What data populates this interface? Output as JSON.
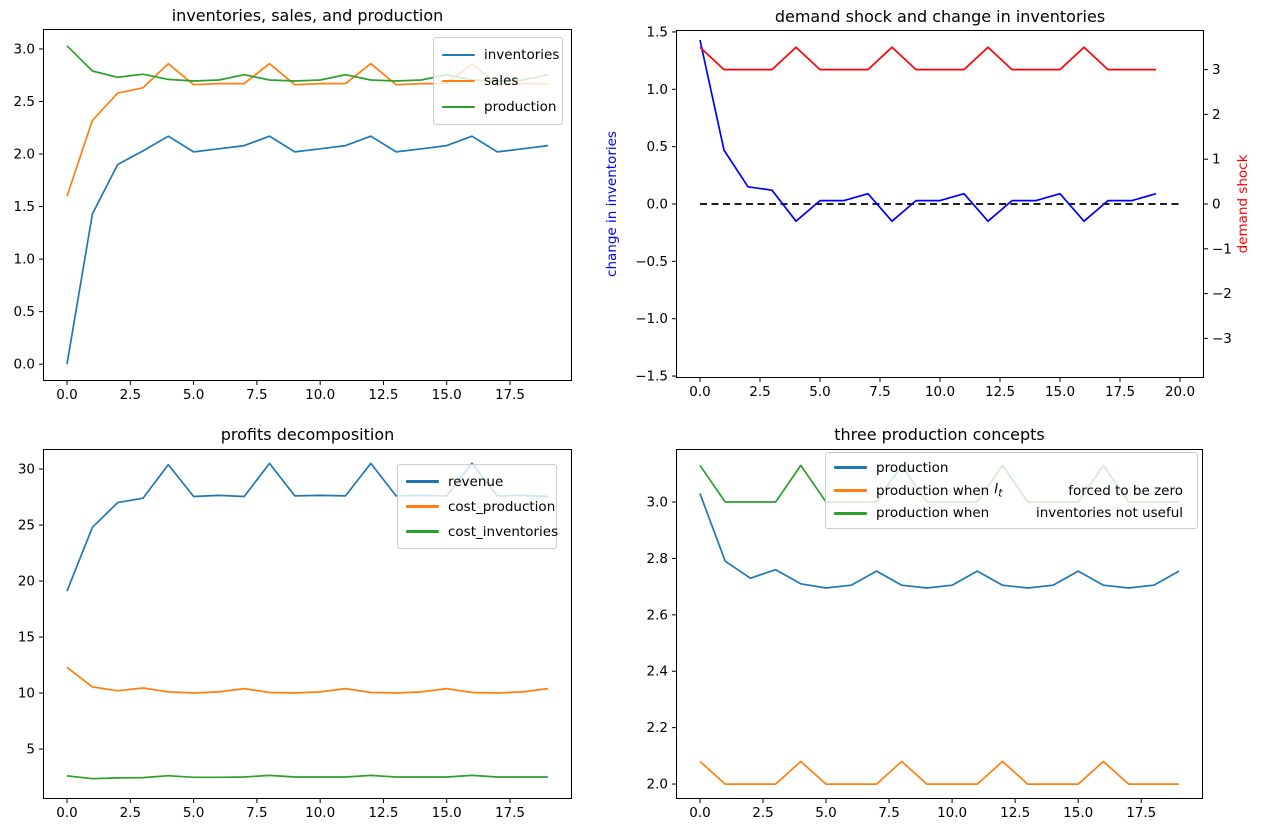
{
  "chart_data": [
    {
      "id": "inventories-sales-production",
      "type": "line",
      "title": "inventories, sales, and production",
      "grid": false,
      "x": [
        0,
        1,
        2,
        3,
        4,
        5,
        6,
        7,
        8,
        9,
        10,
        11,
        12,
        13,
        14,
        15,
        16,
        17,
        18,
        19
      ],
      "xlim": [
        -0.95,
        19.95
      ],
      "ylim": [
        -0.16,
        3.19
      ],
      "xticks": {
        "values": [
          0,
          2.5,
          5,
          7.5,
          10,
          12.5,
          15,
          17.5
        ],
        "labels": [
          "0.0",
          "2.5",
          "5.0",
          "7.5",
          "10.0",
          "12.5",
          "15.0",
          "17.5"
        ]
      },
      "yticks": {
        "values": [
          0,
          0.5,
          1,
          1.5,
          2,
          2.5,
          3
        ],
        "labels": [
          "0.0",
          "0.5",
          "1.0",
          "1.5",
          "2.0",
          "2.5",
          "3.0"
        ]
      },
      "series": [
        {
          "name": "inventories",
          "color": "#1f77b4",
          "values": [
            0.0,
            1.43,
            1.9,
            2.03,
            2.17,
            2.02,
            2.05,
            2.08,
            2.17,
            2.02,
            2.05,
            2.08,
            2.17,
            2.02,
            2.05,
            2.08,
            2.17,
            2.02,
            2.05,
            2.08
          ]
        },
        {
          "name": "sales",
          "color": "#ff7f0e",
          "values": [
            1.6,
            2.32,
            2.58,
            2.63,
            2.86,
            2.66,
            2.67,
            2.67,
            2.86,
            2.66,
            2.67,
            2.67,
            2.86,
            2.66,
            2.67,
            2.67,
            2.86,
            2.66,
            2.67,
            2.67
          ]
        },
        {
          "name": "production",
          "color": "#2ca02c",
          "values": [
            3.03,
            2.79,
            2.73,
            2.76,
            2.71,
            2.695,
            2.705,
            2.755,
            2.705,
            2.695,
            2.705,
            2.755,
            2.705,
            2.695,
            2.705,
            2.755,
            2.705,
            2.695,
            2.705,
            2.755
          ]
        }
      ],
      "legend": {
        "position": "upper right",
        "entries": [
          {
            "label": "inventories",
            "color": "#1f77b4"
          },
          {
            "label": "sales",
            "color": "#ff7f0e"
          },
          {
            "label": "production",
            "color": "#2ca02c"
          }
        ]
      }
    },
    {
      "id": "demand-shock-and-change-in-inventories",
      "type": "line",
      "title": "demand shock and change in inventories",
      "grid": false,
      "dual_axis": true,
      "ylabel_left": {
        "text": "change in inventories",
        "color": "#0000ff"
      },
      "ylabel_right": {
        "text": "demand shock",
        "color": "#ff0000"
      },
      "x": [
        0,
        1,
        2,
        3,
        4,
        5,
        6,
        7,
        8,
        9,
        10,
        11,
        12,
        13,
        14,
        15,
        16,
        17,
        18,
        19
      ],
      "xlim": [
        -1,
        21
      ],
      "ylim": [
        -1.517,
        1.517
      ],
      "ylim_right": [
        -3.884,
        3.884
      ],
      "xticks": {
        "values": [
          0,
          2.5,
          5,
          7.5,
          10,
          12.5,
          15,
          17.5,
          20
        ],
        "labels": [
          "0.0",
          "2.5",
          "5.0",
          "7.5",
          "10.0",
          "12.5",
          "15.0",
          "17.5",
          "20.0"
        ]
      },
      "yticks": {
        "values": [
          -1.5,
          -1,
          -0.5,
          0,
          0.5,
          1,
          1.5
        ],
        "labels": [
          "−1.5",
          "−1.0",
          "−0.5",
          "0.0",
          "0.5",
          "1.0",
          "1.5"
        ]
      },
      "yticks_right": {
        "values": [
          -3,
          -2,
          -1,
          0,
          1,
          2,
          3
        ],
        "labels": [
          "−3",
          "−2",
          "−1",
          "0",
          "1",
          "2",
          "3"
        ]
      },
      "series": [
        {
          "name": "zero line",
          "color": "#000000",
          "dash": true,
          "axis": "left",
          "x": [
            0,
            20
          ],
          "values": [
            0,
            0
          ]
        },
        {
          "name": "change in inventories",
          "color": "#0000ff",
          "axis": "left",
          "values": [
            1.43,
            0.47,
            0.15,
            0.12,
            -0.15,
            0.03,
            0.03,
            0.09,
            -0.15,
            0.03,
            0.03,
            0.09,
            -0.15,
            0.03,
            0.03,
            0.09,
            -0.15,
            0.03,
            0.03,
            0.09
          ]
        },
        {
          "name": "demand shock",
          "color": "#ff0000",
          "axis": "right",
          "values": [
            3.5,
            3,
            3,
            3,
            3.5,
            3,
            3,
            3,
            3.5,
            3,
            3,
            3,
            3.5,
            3,
            3,
            3,
            3.5,
            3,
            3,
            3
          ]
        }
      ]
    },
    {
      "id": "profits-decomposition",
      "type": "line",
      "title": "profits decomposition",
      "grid": false,
      "x": [
        0,
        1,
        2,
        3,
        4,
        5,
        6,
        7,
        8,
        9,
        10,
        11,
        12,
        13,
        14,
        15,
        16,
        17,
        18,
        19
      ],
      "xlim": [
        -0.95,
        19.95
      ],
      "ylim": [
        0.54,
        31.79
      ],
      "xticks": {
        "values": [
          0,
          2.5,
          5,
          7.5,
          10,
          12.5,
          15,
          17.5
        ],
        "labels": [
          "0.0",
          "2.5",
          "5.0",
          "7.5",
          "10.0",
          "12.5",
          "15.0",
          "17.5"
        ]
      },
      "yticks": {
        "values": [
          5,
          10,
          15,
          20,
          25,
          30
        ],
        "labels": [
          "5",
          "10",
          "15",
          "20",
          "25",
          "30"
        ]
      },
      "series": [
        {
          "name": "revenue",
          "color": "#1f77b4",
          "values": [
            19.1,
            24.8,
            27.0,
            27.4,
            30.4,
            27.55,
            27.65,
            27.55,
            30.5,
            27.6,
            27.65,
            27.6,
            30.5,
            27.6,
            27.65,
            27.6,
            30.5,
            27.6,
            27.65,
            27.55
          ]
        },
        {
          "name": "cost_production",
          "color": "#ff7f0e",
          "values": [
            12.3,
            10.55,
            10.2,
            10.45,
            10.1,
            10.0,
            10.1,
            10.4,
            10.05,
            10.0,
            10.1,
            10.4,
            10.05,
            10.0,
            10.1,
            10.4,
            10.05,
            10.0,
            10.1,
            10.4
          ]
        },
        {
          "name": "cost_inventories",
          "color": "#2ca02c",
          "values": [
            2.6,
            2.35,
            2.42,
            2.45,
            2.62,
            2.48,
            2.48,
            2.5,
            2.65,
            2.5,
            2.5,
            2.5,
            2.65,
            2.5,
            2.5,
            2.5,
            2.65,
            2.5,
            2.5,
            2.5
          ]
        }
      ],
      "legend": {
        "position": "upper right",
        "entries": [
          {
            "label": "revenue",
            "color": "#1f77b4"
          },
          {
            "label": "cost_production",
            "color": "#ff7f0e"
          },
          {
            "label": "cost_inventories",
            "color": "#2ca02c"
          }
        ]
      }
    },
    {
      "id": "three-production-concepts",
      "type": "line",
      "title": "three production concepts",
      "grid": false,
      "x": [
        0,
        1,
        2,
        3,
        4,
        5,
        6,
        7,
        8,
        9,
        10,
        11,
        12,
        13,
        14,
        15,
        16,
        17,
        18,
        19
      ],
      "xlim": [
        -0.95,
        19.95
      ],
      "ylim": [
        1.947,
        3.188
      ],
      "xticks": {
        "values": [
          0,
          2.5,
          5,
          7.5,
          10,
          12.5,
          15,
          17.5
        ],
        "labels": [
          "0.0",
          "2.5",
          "5.0",
          "7.5",
          "10.0",
          "12.5",
          "15.0",
          "17.5"
        ]
      },
      "yticks": {
        "values": [
          2.0,
          2.2,
          2.4,
          2.6,
          2.8,
          3.0
        ],
        "labels": [
          "2.0",
          "2.2",
          "2.4",
          "2.6",
          "2.8",
          "3.0"
        ]
      },
      "series": [
        {
          "name": "production",
          "color": "#1f77b4",
          "values": [
            3.03,
            2.79,
            2.73,
            2.76,
            2.71,
            2.695,
            2.705,
            2.755,
            2.705,
            2.695,
            2.705,
            2.755,
            2.705,
            2.695,
            2.705,
            2.755,
            2.705,
            2.695,
            2.705,
            2.755
          ]
        },
        {
          "name": "production when I_t forced to be zero",
          "color": "#ff7f0e",
          "values": [
            2.08,
            2.0,
            2.0,
            2.0,
            2.08,
            2.0,
            2.0,
            2.0,
            2.08,
            2.0,
            2.0,
            2.0,
            2.08,
            2.0,
            2.0,
            2.0,
            2.08,
            2.0,
            2.0,
            2.0
          ]
        },
        {
          "name": "production when inventories not useful",
          "color": "#2ca02c",
          "values": [
            3.13,
            3.0,
            3.0,
            3.0,
            3.13,
            3.0,
            3.0,
            3.0,
            3.13,
            3.0,
            3.0,
            3.0,
            3.13,
            3.0,
            3.0,
            3.0,
            3.13,
            3.0,
            3.0,
            3.0
          ]
        }
      ],
      "legend": {
        "position": "upper right",
        "entries": [
          {
            "label": "production",
            "color": "#1f77b4"
          },
          {
            "label": "production when",
            "var": "I",
            "var_sub": "t",
            "label2": "forced to be zero",
            "color": "#ff7f0e"
          },
          {
            "label": "production when",
            "label2": "inventories not useful",
            "color": "#2ca02c"
          }
        ]
      }
    }
  ]
}
